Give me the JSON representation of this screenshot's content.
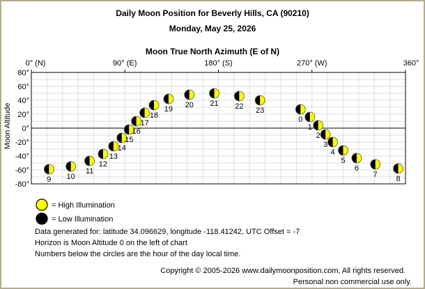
{
  "header": {
    "title": "Daily Moon Position for Beverly Hills, CA (90210)",
    "date": "Monday, May 25, 2026"
  },
  "chart_data": {
    "type": "scatter",
    "title": "Daily Moon Position for Beverly Hills, CA (90210)",
    "subtitle": "Monday, May 25, 2026",
    "xlabel": "Moon True North Azimuth (E of N)",
    "ylabel": "Moon Altitude",
    "xlim": [
      0,
      360
    ],
    "ylim": [
      -80,
      80
    ],
    "x_ticks": [
      {
        "value": 0,
        "label": "0° (N)"
      },
      {
        "value": 90,
        "label": "90° (E)"
      },
      {
        "value": 180,
        "label": "180° (S)"
      },
      {
        "value": 270,
        "label": "270° (W)"
      },
      {
        "value": 360,
        "label": "360°"
      }
    ],
    "y_ticks": [
      {
        "value": 80,
        "label": "80°"
      },
      {
        "value": 60,
        "label": "60°"
      },
      {
        "value": 40,
        "label": "40°"
      },
      {
        "value": 20,
        "label": "20°"
      },
      {
        "value": 0,
        "label": "0°"
      },
      {
        "value": -20,
        "label": "-20°"
      },
      {
        "value": -40,
        "label": "-40°"
      },
      {
        "value": -60,
        "label": "-60°"
      },
      {
        "value": -80,
        "label": "-80°"
      }
    ],
    "grid": true,
    "horizon_line": 0,
    "illumination_color": "#ffff00",
    "dark_color": "#000000",
    "points": [
      {
        "hour": "0",
        "az": 259,
        "alt": 27
      },
      {
        "hour": "1",
        "az": 268,
        "alt": 16
      },
      {
        "hour": "2",
        "az": 276,
        "alt": 4
      },
      {
        "hour": "3",
        "az": 283,
        "alt": -9
      },
      {
        "hour": "4",
        "az": 290,
        "alt": -20
      },
      {
        "hour": "5",
        "az": 300,
        "alt": -32
      },
      {
        "hour": "6",
        "az": 313,
        "alt": -43
      },
      {
        "hour": "7",
        "az": 331,
        "alt": -52
      },
      {
        "hour": "8",
        "az": 353,
        "alt": -58
      },
      {
        "hour": "9",
        "az": 17,
        "alt": -59
      },
      {
        "hour": "10",
        "az": 38,
        "alt": -55
      },
      {
        "hour": "11",
        "az": 56,
        "alt": -47
      },
      {
        "hour": "12",
        "az": 69,
        "alt": -37
      },
      {
        "hour": "13",
        "az": 79,
        "alt": -26
      },
      {
        "hour": "14",
        "az": 87,
        "alt": -14
      },
      {
        "hour": "15",
        "az": 94,
        "alt": -2
      },
      {
        "hour": "16",
        "az": 101,
        "alt": 10
      },
      {
        "hour": "17",
        "az": 109,
        "alt": 22
      },
      {
        "hour": "18",
        "az": 118,
        "alt": 33
      },
      {
        "hour": "19",
        "az": 132,
        "alt": 42
      },
      {
        "hour": "20",
        "az": 152,
        "alt": 48
      },
      {
        "hour": "21",
        "az": 176,
        "alt": 50
      },
      {
        "hour": "22",
        "az": 200,
        "alt": 46
      },
      {
        "hour": "23",
        "az": 220,
        "alt": 40
      }
    ]
  },
  "legend": {
    "high": "= High Illumination",
    "low": "= Low Illumination"
  },
  "info": {
    "line1": "Data generated for: latitude 34.096629, longitude -118.41242, UTC Offset = -7",
    "line2": "Horizon is Moon Altitude 0 on the left of chart",
    "line3": "Numbers below the circles are the hour of the day local time."
  },
  "footer": {
    "copyright": "Copyright © 2005-2026 www.dailymoonposition.com, All rights reserved.",
    "notice": "Personal non commercial use only."
  }
}
